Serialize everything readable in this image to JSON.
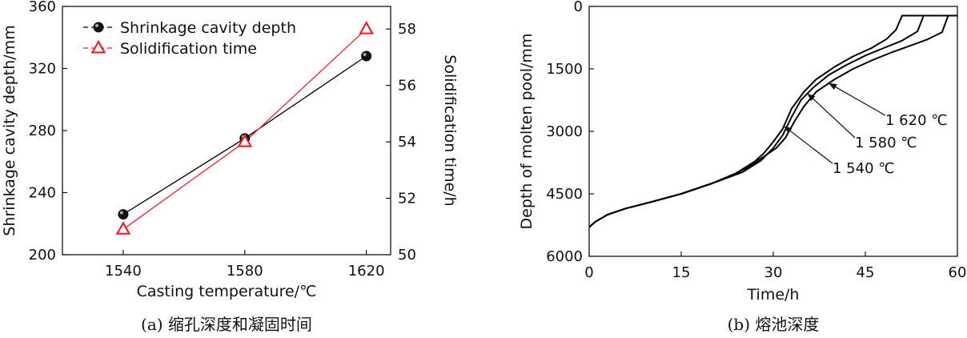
{
  "chart_data": [
    {
      "type": "line",
      "caption": "(a) 缩孔深度和凝固时间",
      "xlabel": "Casting temperature/℃",
      "ylabel": "Shrinkage cavity depth/mm",
      "y2label": "Solidification time/h",
      "x_ticks": [
        "1540",
        "1580",
        "1620"
      ],
      "y_ticks": [
        "200",
        "240",
        "280",
        "320",
        "360"
      ],
      "y2_ticks": [
        "50",
        "52",
        "54",
        "56",
        "58"
      ],
      "xlim": [
        1520,
        1628
      ],
      "ylim": [
        200,
        360
      ],
      "y2lim": [
        50,
        58.8
      ],
      "legend_position": "top-left",
      "series": [
        {
          "name": "Shrinkage cavity depth",
          "axis": "left",
          "marker": "circle",
          "color": "#000000",
          "x": [
            1540,
            1580,
            1620
          ],
          "y": [
            226,
            275,
            328
          ]
        },
        {
          "name": "Solidification time",
          "axis": "right",
          "marker": "triangle",
          "color": "#e8242c",
          "x": [
            1540,
            1580,
            1620
          ],
          "y": [
            50.9,
            54.0,
            58.0
          ]
        }
      ]
    },
    {
      "type": "line",
      "caption": "(b) 熔池深度",
      "xlabel": "Time/h",
      "ylabel": "Depth of molten pool/mm",
      "x_ticks": [
        "0",
        "15",
        "30",
        "45",
        "60"
      ],
      "y_ticks": [
        "0",
        "1500",
        "3000",
        "4500",
        "6000"
      ],
      "xlim": [
        0,
        60
      ],
      "ylim": [
        6000,
        0
      ],
      "y_inverted": true,
      "series": [
        {
          "name": "1 540 ℃",
          "color": "#000000",
          "x": [
            0,
            1,
            3,
            6,
            10,
            15,
            20,
            24,
            27,
            28.5,
            30,
            31.5,
            33,
            35,
            37,
            40,
            43,
            46,
            48.5,
            50,
            51,
            56,
            60
          ],
          "y": [
            5300,
            5170,
            5000,
            4850,
            4700,
            4500,
            4250,
            4000,
            3720,
            3520,
            3250,
            2950,
            2450,
            2050,
            1750,
            1450,
            1200,
            1000,
            780,
            560,
            220,
            220,
            220
          ]
        },
        {
          "name": "1 580 ℃",
          "color": "#000000",
          "x": [
            0,
            1,
            3,
            6,
            10,
            15,
            20,
            25,
            28,
            30,
            31.5,
            33,
            34.5,
            36.5,
            39,
            42,
            45,
            48,
            51,
            53.5,
            54.5,
            58,
            60
          ],
          "y": [
            5300,
            5170,
            5000,
            4850,
            4700,
            4500,
            4250,
            3980,
            3700,
            3400,
            3100,
            2650,
            2250,
            1950,
            1650,
            1400,
            1180,
            1000,
            820,
            600,
            220,
            220,
            220
          ]
        },
        {
          "name": "1 620 ℃",
          "color": "#000000",
          "x": [
            0,
            1,
            3,
            6,
            10,
            15,
            20,
            23,
            26,
            28.5,
            30.5,
            32,
            33.5,
            35,
            37,
            40,
            43,
            46,
            49,
            52,
            55,
            57.5,
            58.5,
            60
          ],
          "y": [
            5300,
            5170,
            5000,
            4850,
            4700,
            4500,
            4250,
            4080,
            3850,
            3600,
            3400,
            3150,
            2750,
            2400,
            2050,
            1750,
            1500,
            1300,
            1120,
            960,
            800,
            620,
            220,
            220
          ]
        }
      ],
      "annotations": [
        {
          "text": "1 620 ℃",
          "series": "1 620 ℃",
          "at_x": 39
        },
        {
          "text": "1 580 ℃",
          "series": "1 580 ℃",
          "at_x": 35.5
        },
        {
          "text": "1 540 ℃",
          "series": "1 540 ℃",
          "at_x": 31.7
        }
      ]
    }
  ]
}
